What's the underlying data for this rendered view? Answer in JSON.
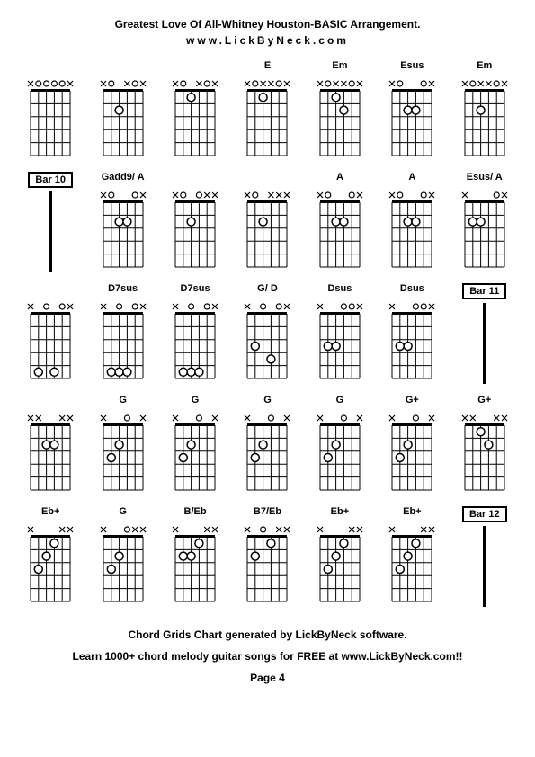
{
  "title": "Greatest Love Of All-Whitney Houston-BASIC Arrangement.",
  "website": "www.LickByNeck.com",
  "footer1": "Chord Grids Chart generated by LickByNeck software.",
  "footer2": "Learn 1000+ chord melody guitar songs for FREE at www.LickByNeck.com!!",
  "page": "Page 4",
  "colors": {
    "line": "#000000",
    "bg": "#ffffff",
    "marker_fill": "#ffffff",
    "marker_stroke": "#000000"
  },
  "chord_dims": {
    "width": 60,
    "height": 100,
    "fret_count": 5,
    "string_count": 6
  },
  "rows": [
    [
      {
        "name": "",
        "mutes": [
          0,
          5
        ],
        "opens": [
          1,
          2,
          3,
          4
        ],
        "dots": []
      },
      {
        "name": "",
        "mutes": [
          0,
          3,
          5
        ],
        "opens": [
          1,
          4
        ],
        "dots": [
          [
            2,
            2
          ]
        ]
      },
      {
        "name": "",
        "mutes": [
          0,
          3,
          5
        ],
        "opens": [
          1,
          4
        ],
        "dots": [
          [
            2,
            1
          ]
        ]
      },
      {
        "name": "E",
        "mutes": [
          0,
          2,
          3,
          5
        ],
        "opens": [
          1,
          4
        ],
        "dots": [
          [
            2,
            1
          ]
        ]
      },
      {
        "name": "Em",
        "mutes": [
          0,
          2,
          3,
          5
        ],
        "opens": [
          1,
          4
        ],
        "dots": [
          [
            2,
            1
          ],
          [
            3,
            2
          ]
        ]
      },
      {
        "name": "Esus",
        "mutes": [
          0,
          5
        ],
        "opens": [
          1,
          4
        ],
        "dots": [
          [
            2,
            2
          ],
          [
            3,
            2
          ]
        ]
      },
      {
        "name": "Em",
        "mutes": [
          0,
          2,
          3,
          5
        ],
        "opens": [
          1,
          4
        ],
        "dots": [
          [
            2,
            2
          ]
        ]
      }
    ],
    [
      {
        "type": "bar",
        "label": "Bar 10"
      },
      {
        "name": "Gadd9/ A",
        "mutes": [
          0,
          5
        ],
        "opens": [
          1,
          4
        ],
        "dots": [
          [
            2,
            2
          ],
          [
            3,
            2
          ]
        ]
      },
      {
        "name": "",
        "mutes": [
          0,
          4,
          5
        ],
        "opens": [
          1,
          3
        ],
        "dots": [
          [
            2,
            2
          ]
        ]
      },
      {
        "name": "",
        "mutes": [
          0,
          3,
          4,
          5
        ],
        "opens": [
          1
        ],
        "dots": [
          [
            2,
            2
          ]
        ]
      },
      {
        "name": "A",
        "mutes": [
          0,
          5
        ],
        "opens": [
          1,
          4
        ],
        "dots": [
          [
            2,
            2
          ],
          [
            3,
            2
          ]
        ]
      },
      {
        "name": "A",
        "mutes": [
          0,
          5
        ],
        "opens": [
          1,
          4
        ],
        "dots": [
          [
            2,
            2
          ],
          [
            3,
            2
          ]
        ]
      },
      {
        "name": "Esus/ A",
        "mutes": [
          0,
          5
        ],
        "opens": [
          4
        ],
        "dots": [
          [
            1,
            2
          ],
          [
            2,
            2
          ]
        ]
      }
    ],
    [
      {
        "name": "",
        "mutes": [
          0,
          5
        ],
        "opens": [
          2,
          4
        ],
        "dots": [
          [
            1,
            5
          ],
          [
            3,
            5
          ]
        ]
      },
      {
        "name": "D7sus",
        "mutes": [
          0,
          5
        ],
        "opens": [
          2,
          4
        ],
        "dots": [
          [
            1,
            5
          ],
          [
            2,
            5
          ],
          [
            3,
            5
          ]
        ]
      },
      {
        "name": "D7sus",
        "mutes": [
          0,
          5
        ],
        "opens": [
          2,
          4
        ],
        "dots": [
          [
            1,
            5
          ],
          [
            2,
            5
          ],
          [
            3,
            5
          ]
        ]
      },
      {
        "name": "G/ D",
        "mutes": [
          0,
          5
        ],
        "opens": [
          2,
          4
        ],
        "dots": [
          [
            1,
            3
          ],
          [
            3,
            4
          ]
        ]
      },
      {
        "name": "Dsus",
        "mutes": [
          0,
          5
        ],
        "opens": [
          3,
          4
        ],
        "dots": [
          [
            1,
            3
          ],
          [
            2,
            3
          ]
        ]
      },
      {
        "name": "Dsus",
        "mutes": [
          0,
          5
        ],
        "opens": [
          3,
          4
        ],
        "dots": [
          [
            1,
            3
          ],
          [
            2,
            3
          ]
        ]
      },
      {
        "type": "bar",
        "label": "Bar 11"
      }
    ],
    [
      {
        "name": "",
        "mutes": [
          0,
          1,
          4,
          5
        ],
        "opens": [],
        "dots": [
          [
            2,
            2
          ],
          [
            3,
            2
          ]
        ]
      },
      {
        "name": "G",
        "mutes": [
          0,
          5
        ],
        "opens": [
          3
        ],
        "dots": [
          [
            1,
            3
          ],
          [
            2,
            2
          ]
        ]
      },
      {
        "name": "G",
        "mutes": [
          0,
          5
        ],
        "opens": [
          3
        ],
        "dots": [
          [
            1,
            3
          ],
          [
            2,
            2
          ]
        ]
      },
      {
        "name": "G",
        "mutes": [
          0,
          5
        ],
        "opens": [
          3
        ],
        "dots": [
          [
            1,
            3
          ],
          [
            2,
            2
          ]
        ]
      },
      {
        "name": "G",
        "mutes": [
          0,
          5
        ],
        "opens": [
          3
        ],
        "dots": [
          [
            1,
            3
          ],
          [
            2,
            2
          ]
        ]
      },
      {
        "name": "G+",
        "mutes": [
          0,
          5
        ],
        "opens": [
          3
        ],
        "dots": [
          [
            1,
            3
          ],
          [
            2,
            2
          ]
        ]
      },
      {
        "name": "G+",
        "mutes": [
          0,
          1,
          4,
          5
        ],
        "opens": [],
        "dots": [
          [
            2,
            1
          ],
          [
            3,
            2
          ]
        ]
      }
    ],
    [
      {
        "name": "Eb+",
        "mutes": [
          0,
          4,
          5
        ],
        "opens": [],
        "dots": [
          [
            1,
            3
          ],
          [
            2,
            2
          ],
          [
            3,
            1
          ]
        ]
      },
      {
        "name": "G",
        "mutes": [
          0,
          4,
          5
        ],
        "opens": [
          3
        ],
        "dots": [
          [
            1,
            3
          ],
          [
            2,
            2
          ]
        ]
      },
      {
        "name": "B/Eb",
        "mutes": [
          0,
          4,
          5
        ],
        "opens": [],
        "dots": [
          [
            1,
            2
          ],
          [
            2,
            2
          ],
          [
            3,
            1
          ]
        ]
      },
      {
        "name": "B7/Eb",
        "mutes": [
          0,
          4,
          5
        ],
        "opens": [
          2
        ],
        "dots": [
          [
            1,
            2
          ],
          [
            3,
            1
          ]
        ]
      },
      {
        "name": "Eb+",
        "mutes": [
          0,
          4,
          5
        ],
        "opens": [],
        "dots": [
          [
            1,
            3
          ],
          [
            2,
            2
          ],
          [
            3,
            1
          ]
        ]
      },
      {
        "name": "Eb+",
        "mutes": [
          0,
          4,
          5
        ],
        "opens": [],
        "dots": [
          [
            1,
            3
          ],
          [
            2,
            2
          ],
          [
            3,
            1
          ]
        ]
      },
      {
        "type": "bar",
        "label": "Bar 12"
      }
    ]
  ]
}
